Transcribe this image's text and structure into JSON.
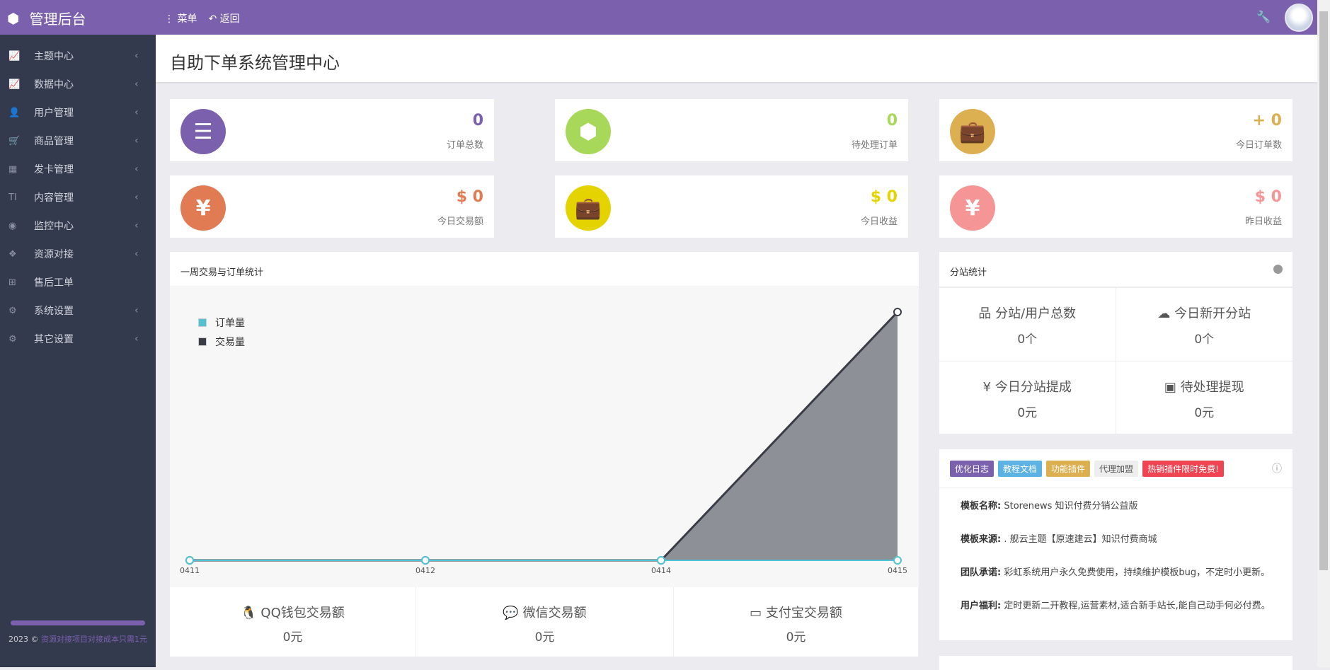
{
  "header": {
    "brand": "管理后台",
    "menu": "菜单",
    "back": "返回"
  },
  "sidebar": {
    "items": [
      {
        "label": "主题中心",
        "icon": "chart-line-icon",
        "glyph": "📈"
      },
      {
        "label": "数据中心",
        "icon": "chart-line-icon",
        "glyph": "📈"
      },
      {
        "label": "用户管理",
        "icon": "user-icon",
        "glyph": "👤"
      },
      {
        "label": "商品管理",
        "icon": "cart-icon",
        "glyph": "🛒"
      },
      {
        "label": "发卡管理",
        "icon": "grid-icon",
        "glyph": "▦"
      },
      {
        "label": "内容管理",
        "icon": "text-icon",
        "glyph": "TI"
      },
      {
        "label": "监控中心",
        "icon": "target-icon",
        "glyph": "◉"
      },
      {
        "label": "资源对接",
        "icon": "cubes-icon",
        "glyph": "❖"
      },
      {
        "label": "售后工单",
        "icon": "ticket-icon",
        "glyph": "⊞"
      },
      {
        "label": "系统设置",
        "icon": "gear-icon",
        "glyph": "⚙"
      },
      {
        "label": "其它设置",
        "icon": "gears-icon",
        "glyph": "⚙"
      }
    ],
    "footer_year": "2023 ©",
    "footer_link": "资源对接项目对接成本只需1元"
  },
  "page_title": "自助下单系统管理中心",
  "stats": [
    {
      "value": "0",
      "label": "订单总数",
      "color": "#7b60ae",
      "icon": "list-ol-icon",
      "glyph": "☰"
    },
    {
      "value": "0",
      "label": "待处理订单",
      "color": "#a8d85a",
      "icon": "cube-icon",
      "glyph": "⬢"
    },
    {
      "value": "+ 0",
      "label": "今日订单数",
      "color": "#dcaf50",
      "icon": "briefcase-icon",
      "glyph": "💼"
    },
    {
      "value": "$ 0",
      "label": "今日交易额",
      "color": "#e07b53",
      "icon": "yen-icon",
      "glyph": "¥"
    },
    {
      "value": "$ 0",
      "label": "今日收益",
      "color": "#e5d300",
      "icon": "briefcase-icon",
      "glyph": "💼"
    },
    {
      "value": "$ 0",
      "label": "昨日收益",
      "color": "#f59595",
      "icon": "yen-icon",
      "glyph": "¥"
    }
  ],
  "chart_panel": {
    "title": "一周交易与订单统计",
    "pay": [
      {
        "label": "QQ钱包交易额",
        "value": "0元",
        "icon": "qq-icon",
        "glyph": "🐧"
      },
      {
        "label": "微信交易额",
        "value": "0元",
        "icon": "wechat-icon",
        "glyph": "💬"
      },
      {
        "label": "支付宝交易额",
        "value": "0元",
        "icon": "credit-card-icon",
        "glyph": "▭"
      }
    ]
  },
  "chart_data": {
    "type": "area",
    "categories": [
      "0411",
      "0412",
      "0414",
      "0415"
    ],
    "series": [
      {
        "name": "订单量",
        "values": [
          0,
          0,
          0,
          0
        ],
        "color": "#4fc3d4"
      },
      {
        "name": "交易量",
        "values": [
          0,
          0,
          0,
          1
        ],
        "color": "#3a3d46"
      }
    ],
    "legend": "top-left",
    "grid": false
  },
  "substation": {
    "title": "分站统计",
    "cells": [
      {
        "label": "分站/用户总数",
        "value": "0个",
        "icon": "sitemap-icon",
        "glyph": "品"
      },
      {
        "label": "今日新开分站",
        "value": "0个",
        "icon": "cloud-icon",
        "glyph": "☁"
      },
      {
        "label": "今日分站提成",
        "value": "0元",
        "icon": "yen-icon",
        "glyph": "¥"
      },
      {
        "label": "待处理提现",
        "value": "0元",
        "icon": "money-icon",
        "glyph": "▣"
      }
    ]
  },
  "info": {
    "tags": [
      {
        "label": "优化日志",
        "color": "#7b60ae"
      },
      {
        "label": "教程文档",
        "color": "#5bb2e3"
      },
      {
        "label": "功能插件",
        "color": "#dcaf50"
      },
      {
        "label": "代理加盟",
        "color": "#eeeeee"
      },
      {
        "label": "热销插件限时免费!",
        "color": "#f04452"
      }
    ],
    "rows": [
      {
        "k": "模板名称:",
        "v": "Storenews 知识付费分销公益版"
      },
      {
        "k": "模板来源:",
        "v": ". 舰云主题【原速建云】知识付费商城"
      },
      {
        "k": "团队承诺:",
        "v": "彩虹系统用户永久免费使用，持续维护模板bug，不定时小更新。"
      },
      {
        "k": "用户福利:",
        "v": "定时更新二开教程,运营素材,适合新手站长,能自己动手何必付费。"
      }
    ]
  }
}
